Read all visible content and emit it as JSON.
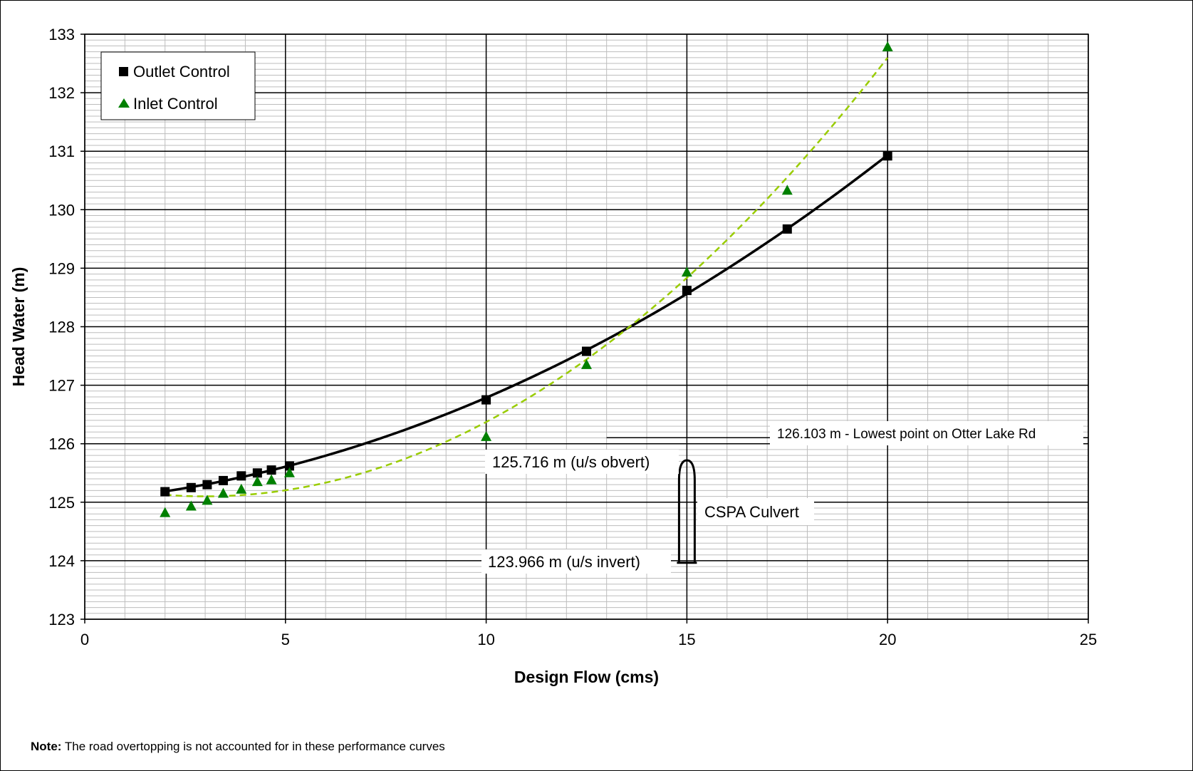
{
  "chart_data": {
    "type": "scatter",
    "title": "",
    "xlabel": "Design Flow (cms)",
    "ylabel": "Head Water (m)",
    "xlim": [
      0,
      25
    ],
    "ylim": [
      123,
      133
    ],
    "x_ticks": [
      "0",
      "5",
      "10",
      "15",
      "20",
      "25"
    ],
    "y_ticks": [
      "123",
      "124",
      "125",
      "126",
      "127",
      "128",
      "129",
      "130",
      "131",
      "132",
      "133"
    ],
    "grid": true,
    "legend": "top-left",
    "series": [
      {
        "name": "Outlet Control",
        "marker": "square",
        "color": "#000000",
        "line": "solid",
        "x": [
          2.0,
          2.65,
          3.05,
          3.45,
          3.9,
          4.3,
          4.65,
          5.1,
          10.0,
          12.5,
          15.0,
          17.5,
          20.0
        ],
        "y": [
          125.18,
          125.25,
          125.3,
          125.37,
          125.45,
          125.5,
          125.55,
          125.62,
          126.75,
          127.58,
          128.62,
          129.67,
          130.92
        ]
      },
      {
        "name": "Inlet Control",
        "marker": "triangle",
        "color": "#008000",
        "line_color": "#99cc00",
        "line": "dashed",
        "x": [
          2.0,
          2.65,
          3.05,
          3.45,
          3.9,
          4.3,
          4.65,
          5.1,
          10.0,
          12.5,
          15.0,
          17.5,
          20.0
        ],
        "y": [
          124.82,
          124.93,
          125.03,
          125.15,
          125.22,
          125.35,
          125.38,
          125.5,
          126.12,
          127.35,
          128.93,
          130.33,
          132.78
        ]
      }
    ],
    "annotations": [
      {
        "text": "126.103 m - Lowest point on Otter Lake Rd",
        "value": 126.103
      },
      {
        "text": "125.716 m (u/s obvert)",
        "value": 125.716
      },
      {
        "text": "CSPA Culvert"
      },
      {
        "text": "123.966 m (u/s invert)",
        "value": 123.966
      }
    ],
    "note_label": "Note:",
    "note_text": " The road overtopping is not accounted for in these performance curves"
  }
}
